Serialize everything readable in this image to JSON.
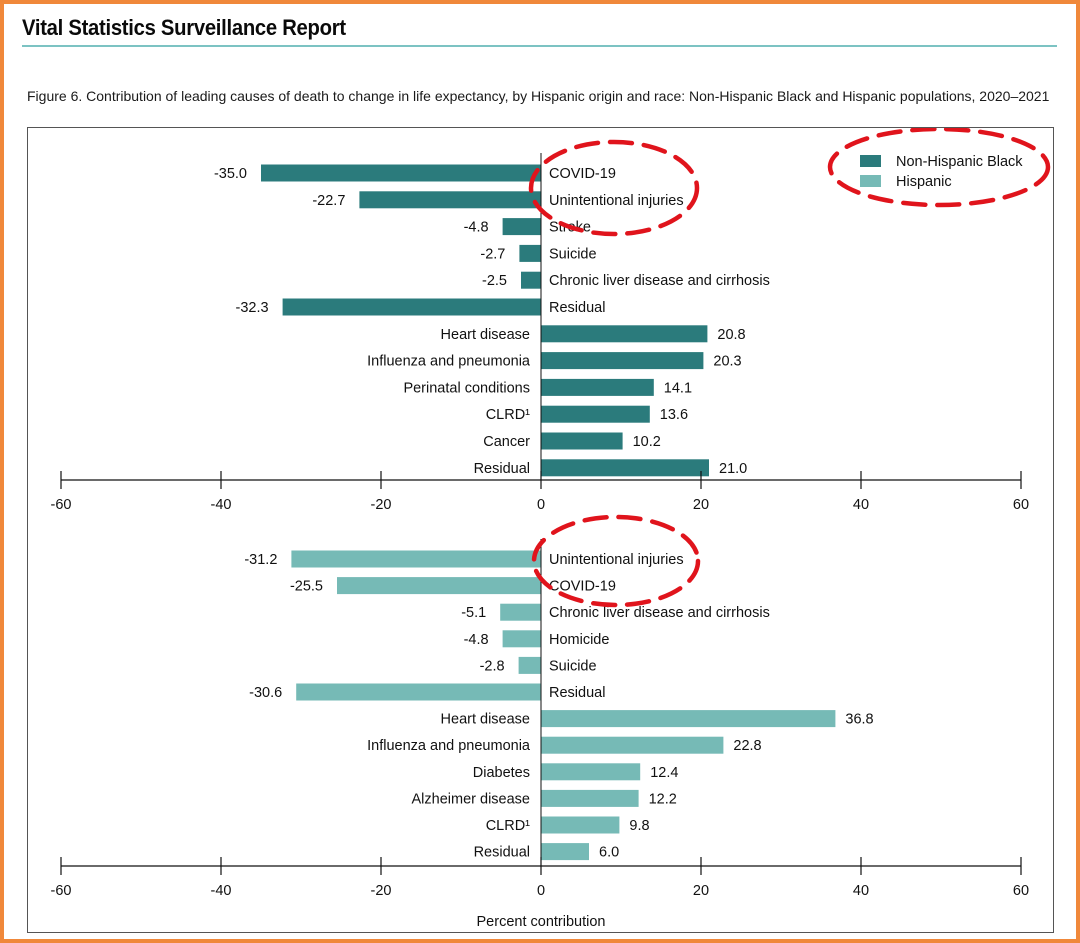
{
  "header": {
    "report_title": "Vital Statistics Surveillance Report",
    "figure_caption": "Figure 6. Contribution of leading causes of death to change in life expectancy, by Hispanic origin and race: Non-Hispanic Black and Hispanic populations, 2020–2021"
  },
  "colors": {
    "non_hispanic_black": "#2b7b7c",
    "hispanic": "#76bab6",
    "frame": "#f0883a",
    "title_rule": "#7cc3c3",
    "annotation_circle": "#e0141c"
  },
  "annotations": {
    "description": "red dashed circles highlighting the legend and the top two causes in each panel",
    "style": "dashed-ellipse"
  },
  "chart_data": [
    {
      "type": "bar",
      "orientation": "horizontal",
      "series": [
        {
          "name": "Non-Hispanic Black",
          "categories": [
            "COVID-19",
            "Unintentional injuries",
            "Stroke",
            "Suicide",
            "Chronic liver disease and cirrhosis",
            "Residual",
            "Heart disease",
            "Influenza and pneumonia",
            "Perinatal conditions",
            "CLRD¹",
            "Cancer",
            "Residual"
          ],
          "values": [
            -35.0,
            -22.7,
            -4.8,
            -2.7,
            -2.5,
            -32.3,
            20.8,
            20.3,
            14.1,
            13.6,
            10.2,
            21.0
          ],
          "value_labels": [
            "-35.0",
            "-22.7",
            "-4.8",
            "-2.7",
            "-2.5",
            "-32.3",
            "20.8",
            "20.3",
            "14.1",
            "13.6",
            "10.2",
            "21.0"
          ]
        }
      ],
      "xlim": [
        -60,
        60
      ],
      "xticks": [
        "-60",
        "-40",
        "-20",
        "0",
        "20",
        "40",
        "60"
      ],
      "xlabel": "",
      "legend": {
        "placement": "top-right",
        "entries": [
          "Non-Hispanic Black",
          "Hispanic"
        ]
      }
    },
    {
      "type": "bar",
      "orientation": "horizontal",
      "series": [
        {
          "name": "Hispanic",
          "categories": [
            "Unintentional injuries",
            "COVID-19",
            "Chronic liver disease and cirrhosis",
            "Homicide",
            "Suicide",
            "Residual",
            "Heart disease",
            "Influenza and pneumonia",
            "Diabetes",
            "Alzheimer disease",
            "CLRD¹",
            "Residual"
          ],
          "values": [
            -31.2,
            -25.5,
            -5.1,
            -4.8,
            -2.8,
            -30.6,
            36.8,
            22.8,
            12.4,
            12.2,
            9.8,
            6.0
          ],
          "value_labels": [
            "-31.2",
            "-25.5",
            "-5.1",
            "-4.8",
            "-2.8",
            "-30.6",
            "36.8",
            "22.8",
            "12.4",
            "12.2",
            "9.8",
            "6.0"
          ]
        }
      ],
      "xlim": [
        -60,
        60
      ],
      "xticks": [
        "-60",
        "-40",
        "-20",
        "0",
        "20",
        "40",
        "60"
      ],
      "xlabel": "Percent contribution"
    }
  ]
}
